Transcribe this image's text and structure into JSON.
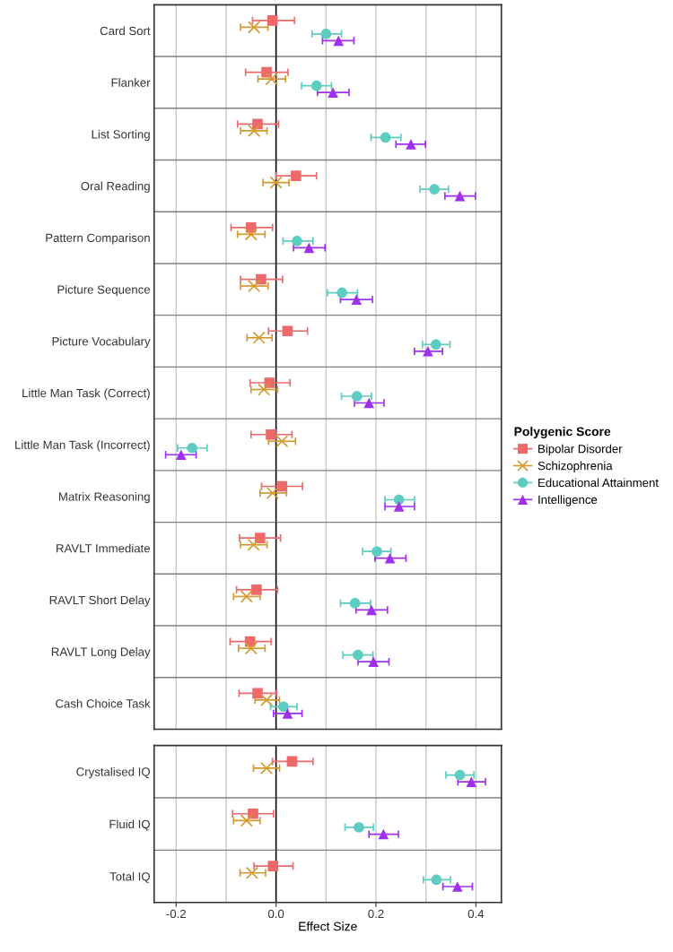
{
  "chart_data": [
    {
      "type": "scatter",
      "orientation": "horizontal",
      "legend_title": "Polygenic Score",
      "legend": "right",
      "tick_labels": "y",
      "grid": "x",
      "categories": [
        "Card Sort",
        "Flanker",
        "List Sorting",
        "Oral Reading",
        "Pattern Comparison",
        "Picture Sequence",
        "Picture Vocabulary",
        "Little Man Task (Correct)",
        "Little Man Task (Incorrect)",
        "Matrix Reasoning",
        "RAVLT Immediate",
        "RAVLT Short Delay",
        "RAVLT Long Delay",
        "Cash Choice Task"
      ],
      "xlim": [
        -0.244,
        0.451
      ],
      "xticks": [
        {
          "value": -0.2,
          "label": null
        },
        {
          "value": -0.1,
          "label": null
        },
        {
          "value": 0,
          "label": null
        },
        {
          "value": 0.1,
          "label": null
        },
        {
          "value": 0.2,
          "label": null
        },
        {
          "value": 0.3,
          "label": null
        },
        {
          "value": 0.4,
          "label": null
        }
      ],
      "ref_lines": [
        {
          "axis": "x",
          "value": 0,
          "color": "#000000"
        }
      ],
      "series": [
        {
          "name": "Bipolar Disorder",
          "color": "#ee6a6a",
          "marker": "square",
          "values": [
            -0.007,
            -0.019,
            -0.037,
            0.04,
            -0.05,
            -0.03,
            0.023,
            -0.013,
            -0.01,
            0.012,
            -0.032,
            -0.039,
            -0.052,
            -0.037
          ],
          "errors": [
            [
              -0.047,
              0.037
            ],
            [
              -0.061,
              0.024
            ],
            [
              -0.077,
              0.005
            ],
            [
              0.0,
              0.081
            ],
            [
              -0.09,
              -0.007
            ],
            [
              -0.071,
              0.013
            ],
            [
              -0.015,
              0.063
            ],
            [
              -0.052,
              0.028
            ],
            [
              -0.05,
              0.032
            ],
            [
              -0.029,
              0.053
            ],
            [
              -0.073,
              0.009
            ],
            [
              -0.079,
              0.003
            ],
            [
              -0.092,
              -0.01
            ],
            [
              -0.074,
              0.001
            ]
          ]
        },
        {
          "name": "Schizophrenia",
          "color": "#d49a2e",
          "marker": "cross",
          "values": [
            -0.044,
            -0.009,
            -0.044,
            0.0,
            -0.05,
            -0.044,
            -0.034,
            -0.024,
            0.012,
            -0.007,
            -0.045,
            -0.059,
            -0.05,
            -0.019
          ],
          "errors": [
            [
              -0.071,
              -0.016
            ],
            [
              -0.036,
              0.019
            ],
            [
              -0.071,
              -0.018
            ],
            [
              -0.026,
              0.026
            ],
            [
              -0.077,
              -0.022
            ],
            [
              -0.071,
              -0.016
            ],
            [
              -0.058,
              -0.008
            ],
            [
              -0.05,
              0.003
            ],
            [
              -0.015,
              0.039
            ],
            [
              -0.032,
              0.021
            ],
            [
              -0.071,
              -0.018
            ],
            [
              -0.085,
              -0.032
            ],
            [
              -0.075,
              -0.022
            ],
            [
              -0.042,
              0.007
            ]
          ]
        },
        {
          "name": "Educational Attainment",
          "color": "#5ccdc0",
          "marker": "circle",
          "values": [
            0.1,
            0.081,
            0.219,
            0.317,
            0.042,
            0.132,
            0.32,
            0.162,
            -0.168,
            0.246,
            0.202,
            0.158,
            0.164,
            0.015
          ],
          "errors": [
            [
              0.072,
              0.131
            ],
            [
              0.051,
              0.111
            ],
            [
              0.19,
              0.25
            ],
            [
              0.288,
              0.345
            ],
            [
              0.014,
              0.074
            ],
            [
              0.103,
              0.163
            ],
            [
              0.293,
              0.348
            ],
            [
              0.131,
              0.191
            ],
            [
              -0.197,
              -0.138
            ],
            [
              0.218,
              0.277
            ],
            [
              0.173,
              0.23
            ],
            [
              0.129,
              0.189
            ],
            [
              0.134,
              0.194
            ],
            [
              -0.011,
              0.042
            ]
          ]
        },
        {
          "name": "Intelligence",
          "color": "#a030f0",
          "marker": "triangle",
          "values": [
            0.125,
            0.114,
            0.27,
            0.368,
            0.066,
            0.161,
            0.304,
            0.186,
            -0.19,
            0.246,
            0.228,
            0.191,
            0.195,
            0.023
          ],
          "errors": [
            [
              0.093,
              0.156
            ],
            [
              0.083,
              0.146
            ],
            [
              0.24,
              0.299
            ],
            [
              0.338,
              0.399
            ],
            [
              0.035,
              0.098
            ],
            [
              0.129,
              0.193
            ],
            [
              0.277,
              0.333
            ],
            [
              0.157,
              0.216
            ],
            [
              -0.221,
              -0.16
            ],
            [
              0.218,
              0.277
            ],
            [
              0.198,
              0.26
            ],
            [
              0.16,
              0.223
            ],
            [
              0.164,
              0.226
            ],
            [
              -0.005,
              0.052
            ]
          ]
        }
      ]
    },
    {
      "type": "scatter",
      "orientation": "horizontal",
      "xlabel": "Effect Size",
      "grid": "x",
      "categories": [
        "Crystalised IQ",
        "Fluid IQ",
        "Total IQ"
      ],
      "xlim": [
        -0.244,
        0.451
      ],
      "xticks": [
        {
          "value": -0.2,
          "label": "-0.2"
        },
        {
          "value": -0.1,
          "label": null
        },
        {
          "value": 0,
          "label": "0.0"
        },
        {
          "value": 0.1,
          "label": null
        },
        {
          "value": 0.2,
          "label": "0.2"
        },
        {
          "value": 0.3,
          "label": null
        },
        {
          "value": 0.4,
          "label": "0.4"
        }
      ],
      "ref_lines": [
        {
          "axis": "x",
          "value": 0,
          "color": "#000000"
        }
      ],
      "series": [
        {
          "color": "#ee6a6a",
          "marker": "square",
          "values": [
            0.032,
            -0.046,
            -0.006
          ],
          "errors": [
            [
              -0.007,
              0.074
            ],
            [
              -0.087,
              -0.005
            ],
            [
              -0.044,
              0.034
            ]
          ]
        },
        {
          "color": "#d49a2e",
          "marker": "cross",
          "values": [
            -0.019,
            -0.059,
            -0.048
          ],
          "errors": [
            [
              -0.045,
              0.007
            ],
            [
              -0.085,
              -0.032
            ],
            [
              -0.072,
              -0.021
            ]
          ]
        },
        {
          "color": "#5ccdc0",
          "marker": "circle",
          "values": [
            0.368,
            0.166,
            0.321
          ],
          "errors": [
            [
              0.34,
              0.396
            ],
            [
              0.138,
              0.195
            ],
            [
              0.295,
              0.349
            ]
          ]
        },
        {
          "color": "#a030f0",
          "marker": "triangle",
          "values": [
            0.391,
            0.215,
            0.363
          ],
          "errors": [
            [
              0.364,
              0.419
            ],
            [
              0.186,
              0.245
            ],
            [
              0.334,
              0.393
            ]
          ]
        }
      ]
    }
  ]
}
